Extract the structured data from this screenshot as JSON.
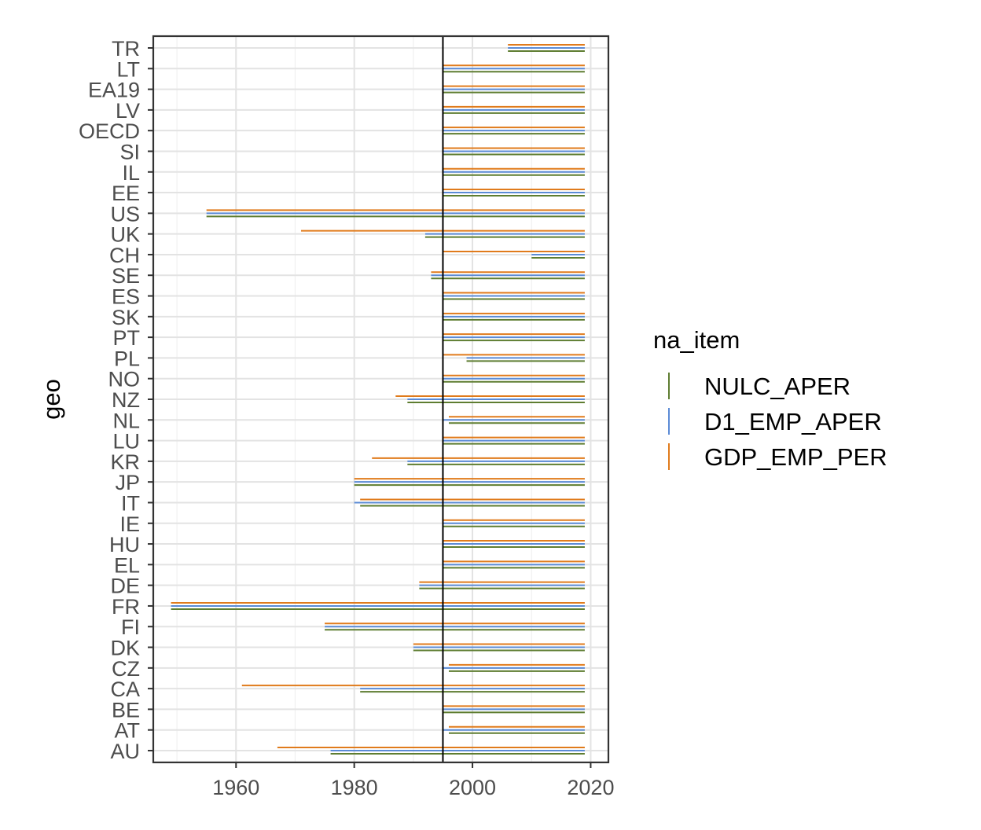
{
  "chart_data": {
    "type": "bar",
    "orientation": "horizontal",
    "chart_style": "segment",
    "ylabel": "geo",
    "xlabel": "",
    "title": "",
    "xlim": [
      1946,
      2023
    ],
    "x_ticks": [
      1960,
      1980,
      2000,
      2020
    ],
    "reference_line_x": 1995,
    "grid": true,
    "legend": {
      "title": "na_item",
      "position": "right"
    },
    "categories": [
      "TR",
      "LT",
      "EA19",
      "LV",
      "OECD",
      "SI",
      "IL",
      "EE",
      "US",
      "UK",
      "CH",
      "SE",
      "ES",
      "SK",
      "PT",
      "PL",
      "NO",
      "NZ",
      "NL",
      "LU",
      "KR",
      "JP",
      "IT",
      "IE",
      "HU",
      "EL",
      "DE",
      "FR",
      "FI",
      "DK",
      "CZ",
      "CA",
      "BE",
      "AT",
      "AU"
    ],
    "series": [
      {
        "name": "NULC_APER",
        "color": "#5e7d31",
        "ranges": [
          [
            2006,
            2019
          ],
          [
            1995,
            2019
          ],
          [
            1995,
            2019
          ],
          [
            1995,
            2019
          ],
          [
            1995,
            2019
          ],
          [
            1995,
            2019
          ],
          [
            1995,
            2019
          ],
          [
            1995,
            2019
          ],
          [
            1955,
            2019
          ],
          [
            1992,
            2019
          ],
          [
            2010,
            2019
          ],
          [
            1993,
            2019
          ],
          [
            1995,
            2019
          ],
          [
            1995,
            2019
          ],
          [
            1995,
            2019
          ],
          [
            1999,
            2019
          ],
          [
            1995,
            2019
          ],
          [
            1989,
            2019
          ],
          [
            1996,
            2019
          ],
          [
            1995,
            2019
          ],
          [
            1989,
            2019
          ],
          [
            1980,
            2019
          ],
          [
            1981,
            2019
          ],
          [
            1995,
            2019
          ],
          [
            1995,
            2019
          ],
          [
            1995,
            2019
          ],
          [
            1991,
            2019
          ],
          [
            1949,
            2019
          ],
          [
            1975,
            2019
          ],
          [
            1990,
            2019
          ],
          [
            1996,
            2019
          ],
          [
            1981,
            2019
          ],
          [
            1995,
            2019
          ],
          [
            1996,
            2019
          ],
          [
            1976,
            2019
          ]
        ]
      },
      {
        "name": "D1_EMP_APER",
        "color": "#5b8bd6",
        "ranges": [
          [
            2006,
            2019
          ],
          [
            1995,
            2019
          ],
          [
            1995,
            2019
          ],
          [
            1995,
            2019
          ],
          [
            1995,
            2019
          ],
          [
            1995,
            2019
          ],
          [
            1995,
            2019
          ],
          [
            1995,
            2019
          ],
          [
            1955,
            2019
          ],
          [
            1992,
            2019
          ],
          [
            2010,
            2019
          ],
          [
            1993,
            2019
          ],
          [
            1995,
            2019
          ],
          [
            1995,
            2019
          ],
          [
            1995,
            2019
          ],
          [
            1999,
            2019
          ],
          [
            1995,
            2019
          ],
          [
            1989,
            2019
          ],
          [
            1995,
            2019
          ],
          [
            1995,
            2019
          ],
          [
            1989,
            2019
          ],
          [
            1980,
            2019
          ],
          [
            1980,
            2019
          ],
          [
            1995,
            2019
          ],
          [
            1995,
            2019
          ],
          [
            1995,
            2019
          ],
          [
            1991,
            2019
          ],
          [
            1949,
            2019
          ],
          [
            1975,
            2019
          ],
          [
            1990,
            2019
          ],
          [
            1995,
            2019
          ],
          [
            1981,
            2019
          ],
          [
            1995,
            2019
          ],
          [
            1995,
            2019
          ],
          [
            1976,
            2019
          ]
        ]
      },
      {
        "name": "GDP_EMP_PER",
        "color": "#e07b1c",
        "ranges": [
          [
            2006,
            2019
          ],
          [
            1995,
            2019
          ],
          [
            1995,
            2019
          ],
          [
            1995,
            2019
          ],
          [
            1995,
            2019
          ],
          [
            1995,
            2019
          ],
          [
            1995,
            2019
          ],
          [
            1995,
            2019
          ],
          [
            1955,
            2019
          ],
          [
            1971,
            2019
          ],
          [
            1995,
            2019
          ],
          [
            1993,
            2019
          ],
          [
            1995,
            2019
          ],
          [
            1995,
            2019
          ],
          [
            1995,
            2019
          ],
          [
            1995,
            2019
          ],
          [
            1995,
            2019
          ],
          [
            1987,
            2019
          ],
          [
            1996,
            2019
          ],
          [
            1995,
            2019
          ],
          [
            1983,
            2019
          ],
          [
            1980,
            2019
          ],
          [
            1981,
            2019
          ],
          [
            1995,
            2019
          ],
          [
            1995,
            2019
          ],
          [
            1995,
            2019
          ],
          [
            1991,
            2019
          ],
          [
            1949,
            2019
          ],
          [
            1975,
            2019
          ],
          [
            1990,
            2019
          ],
          [
            1996,
            2019
          ],
          [
            1961,
            2019
          ],
          [
            1995,
            2019
          ],
          [
            1996,
            2019
          ],
          [
            1967,
            2019
          ]
        ]
      }
    ]
  }
}
